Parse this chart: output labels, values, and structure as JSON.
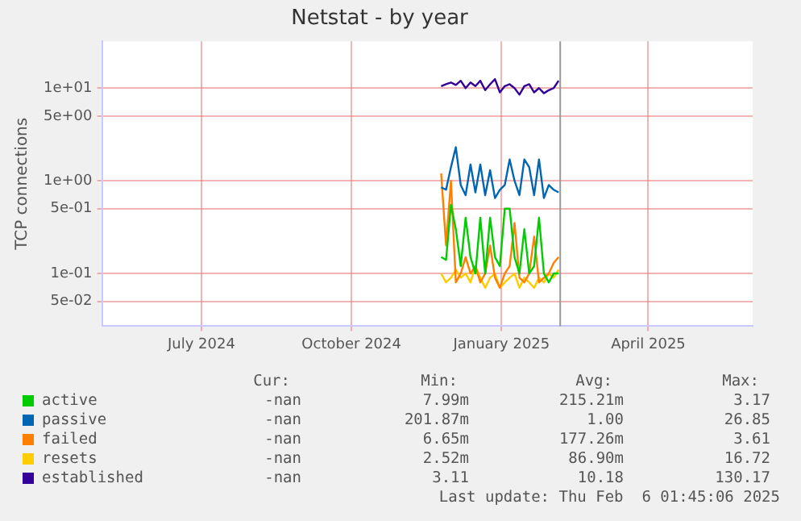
{
  "chart_data": {
    "type": "line",
    "title": "Netstat - by year",
    "ylabel": "TCP connections",
    "log": "y",
    "grid": true,
    "legend": "bottom",
    "marker": "none",
    "line_style": "solid",
    "x": [
      "2024-11-25",
      "2024-11-28",
      "2024-12-01",
      "2024-12-04",
      "2024-12-07",
      "2024-12-10",
      "2024-12-13",
      "2024-12-16",
      "2024-12-19",
      "2024-12-22",
      "2024-12-25",
      "2024-12-28",
      "2024-12-31",
      "2025-01-03",
      "2025-01-06",
      "2025-01-09",
      "2025-01-12",
      "2025-01-15",
      "2025-01-18",
      "2025-01-21",
      "2025-01-24",
      "2025-01-27",
      "2025-01-30",
      "2025-02-02",
      "2025-02-05"
    ],
    "xlim": [
      "2024-05-01",
      "2025-06-04"
    ],
    "xticks": [
      {
        "value": "2024-07-01",
        "label": "July 2024"
      },
      {
        "value": "2024-10-01",
        "label": "October 2024"
      },
      {
        "value": "2025-01-01",
        "label": "January 2025"
      },
      {
        "value": "2025-04-01",
        "label": "April 2025"
      }
    ],
    "ylim": [
      0.027,
      32
    ],
    "yticks": [
      {
        "value": 0.05,
        "label": "5e-02"
      },
      {
        "value": 0.1,
        "label": "1e-01"
      },
      {
        "value": 0.5,
        "label": "5e-01"
      },
      {
        "value": 1,
        "label": "1e+00"
      },
      {
        "value": 5,
        "label": "5e+00"
      },
      {
        "value": 10,
        "label": "1e+01"
      }
    ],
    "ref_lines": [
      {
        "axis": "x",
        "value": "2025-02-06",
        "label": null,
        "color": "#999999"
      }
    ],
    "series": [
      {
        "name": "active",
        "color": "#00cc00",
        "values": [
          0.15,
          0.14,
          0.55,
          0.3,
          0.12,
          0.4,
          0.15,
          0.1,
          0.4,
          0.1,
          0.4,
          0.15,
          0.12,
          0.5,
          0.5,
          0.15,
          0.1,
          0.3,
          0.1,
          0.12,
          0.4,
          0.1,
          0.08,
          0.1,
          0.1
        ]
      },
      {
        "name": "passive",
        "color": "#0066b3",
        "values": [
          0.85,
          0.8,
          1.4,
          2.3,
          0.9,
          0.7,
          1.5,
          0.75,
          1.5,
          0.7,
          1.3,
          0.65,
          0.8,
          0.9,
          1.7,
          1.0,
          0.7,
          1.7,
          1.4,
          0.7,
          1.7,
          0.65,
          0.9,
          0.8,
          0.75
        ]
      },
      {
        "name": "failed",
        "color": "#ff8000",
        "values": [
          1.2,
          0.2,
          1.0,
          0.08,
          0.1,
          0.15,
          0.1,
          0.12,
          0.08,
          0.1,
          0.2,
          0.09,
          0.07,
          0.1,
          0.12,
          0.35,
          0.09,
          0.08,
          0.1,
          0.25,
          0.08,
          0.09,
          0.1,
          0.13,
          0.15
        ]
      },
      {
        "name": "resets",
        "color": "#ffcc00",
        "values": [
          0.1,
          0.08,
          0.09,
          0.11,
          0.09,
          0.1,
          0.08,
          0.12,
          0.09,
          0.07,
          0.09,
          0.1,
          0.07,
          0.08,
          0.09,
          0.1,
          0.07,
          0.09,
          0.08,
          0.07,
          0.09,
          0.08,
          0.1,
          0.09,
          0.11
        ]
      },
      {
        "name": "established",
        "color": "#330099",
        "values": [
          10.5,
          11,
          11.5,
          10.8,
          12,
          10,
          11.5,
          10.5,
          12,
          9.5,
          11,
          12.5,
          9,
          10.5,
          11,
          10,
          8.5,
          10.5,
          11,
          9,
          10,
          8.8,
          9.5,
          10,
          12
        ]
      }
    ],
    "annotations": [
      "Cur:",
      "Min:",
      "Avg:",
      "Max:",
      "-nan",
      "7.99m",
      "215.21m",
      "3.17",
      "-nan",
      "201.87m",
      "1.00",
      "26.85",
      "-nan",
      "6.65m",
      "177.26m",
      "3.61",
      "-nan",
      "2.52m",
      "86.90m",
      "16.72",
      "-nan",
      "3.11",
      "10.18",
      "130.17",
      "Last update: Thu Feb  6 01:45:06 2025"
    ]
  }
}
